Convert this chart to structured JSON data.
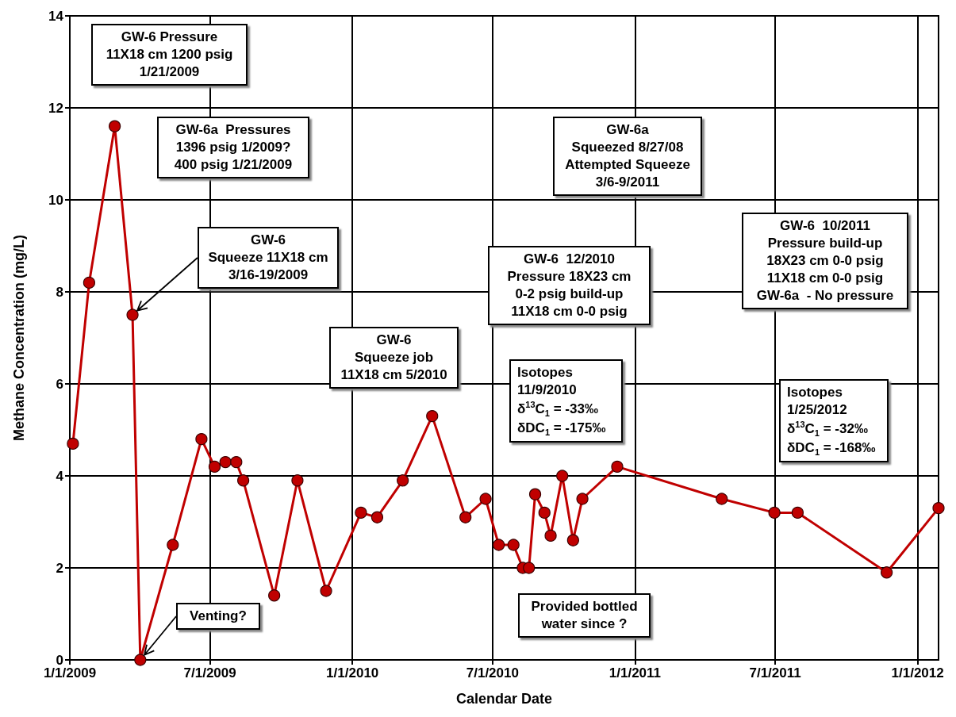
{
  "chart_data": {
    "type": "line",
    "xlabel": "Calendar Date",
    "ylabel": "Methane Concentration (mg/L)",
    "x": [
      "2009-01-05",
      "2009-01-26",
      "2009-02-28",
      "2009-03-23",
      "2009-04-02",
      "2009-05-14",
      "2009-06-20",
      "2009-07-07",
      "2009-07-21",
      "2009-08-04",
      "2009-08-13",
      "2009-09-22",
      "2009-10-22",
      "2009-11-28",
      "2010-01-12",
      "2010-02-02",
      "2010-03-07",
      "2010-04-14",
      "2010-05-27",
      "2010-06-22",
      "2010-07-09",
      "2010-07-28",
      "2010-08-09",
      "2010-08-17",
      "2010-08-25",
      "2010-09-06",
      "2010-09-14",
      "2010-09-29",
      "2010-10-13",
      "2010-10-25",
      "2010-12-09",
      "2011-04-23",
      "2011-06-30",
      "2011-07-30",
      "2011-11-22",
      "2012-01-28"
    ],
    "series": [
      {
        "color": "#c00000",
        "values": [
          4.7,
          8.2,
          11.6,
          7.5,
          0,
          2.5,
          4.8,
          4.2,
          4.3,
          4.3,
          3.9,
          1.4,
          3.9,
          1.5,
          3.2,
          3.1,
          3.9,
          5.3,
          3.1,
          3.5,
          2.5,
          2.5,
          2.0,
          2.0,
          3.6,
          3.2,
          2.7,
          4.0,
          2.6,
          3.5,
          4.2,
          3.5,
          3.2,
          3.2,
          1.9,
          3.3
        ]
      }
    ],
    "xlim": [
      "2009-01-01",
      "2012-01-28"
    ],
    "xticks": [
      {
        "value": "2009-01-01",
        "label": "1/1/2009"
      },
      {
        "value": "2009-07-01",
        "label": "7/1/2009"
      },
      {
        "value": "2010-01-01",
        "label": "1/1/2010"
      },
      {
        "value": "2010-07-01",
        "label": "7/1/2010"
      },
      {
        "value": "2011-01-01",
        "label": "1/1/2011"
      },
      {
        "value": "2011-07-01",
        "label": "7/1/2011"
      },
      {
        "value": "2012-01-01",
        "label": "1/1/2012"
      }
    ],
    "ylim": [
      0,
      14
    ],
    "yticks": [
      0,
      2,
      4,
      6,
      8,
      10,
      12,
      14
    ],
    "grid": true,
    "marker": "circle",
    "line_style": "solid",
    "annotations": [
      "GW-6 Pressure\n11X18 cm 1200 psig\n1/21/2009",
      "GW-6a  Pressures\n1396 psig 1/2009?\n400 psig 1/21/2009",
      {
        "text": "GW-6\nSqueeze 11X18 cm\n3/16-19/2009",
        "x": "2009-03-23",
        "y": 7.5
      },
      "GW-6\nSqueeze job\n11X18 cm 5/2010",
      "GW-6  12/2010\nPressure 18X23 cm\n0-2 psig build-up\n11X18 cm 0-0 psig",
      "GW-6a\nSqueezed 8/27/08\nAttempted Squeeze\n3/6-9/2011",
      "GW-6  10/2011\nPressure build-up\n18X23 cm 0-0 psig\n11X18 cm 0-0 psig\nGW-6a  - No pressure",
      "Isotopes\n11/9/2010\nδ$^{13}$C$_{1}$ = -33‰\nδDC$_{1}$ = -175‰",
      "Isotopes\n1/25/2012\nδ$^{13}$C$_{1}$ = -32‰\nδDC$_{1}$ = -168‰",
      "Provided bottled\nwater since ?",
      {
        "text": "Venting?",
        "x": "2009-04-02",
        "y": 0
      }
    ]
  }
}
